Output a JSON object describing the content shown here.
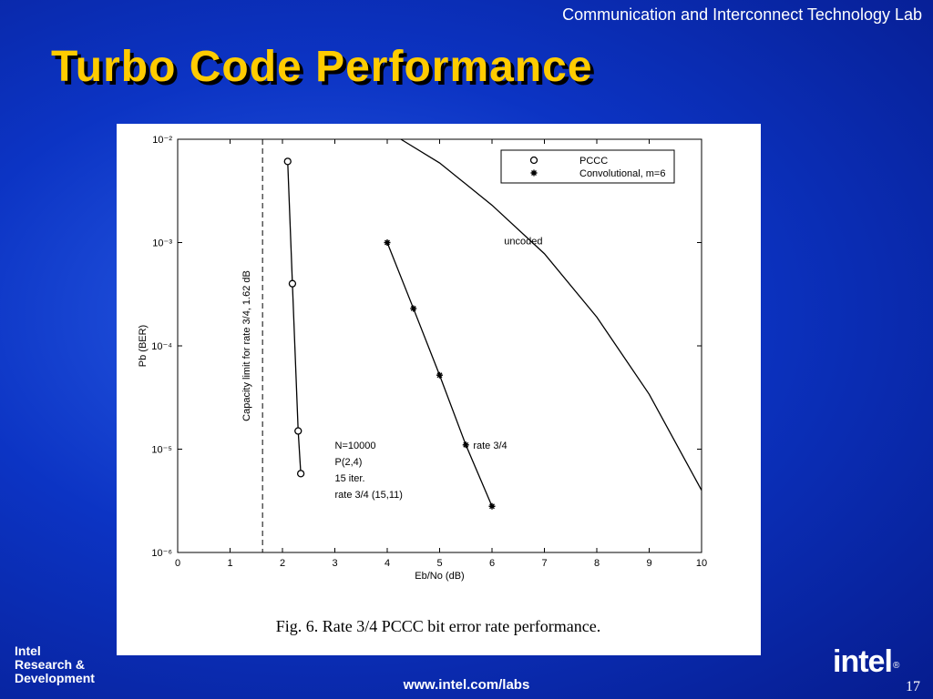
{
  "header": "Communication and Interconnect Technology Lab",
  "title": "Turbo Code Performance",
  "footer": {
    "org": [
      "Intel",
      "Research &",
      "Development"
    ],
    "url": "www.intel.com/labs",
    "page": "17",
    "logo": "intel",
    "registered": "®"
  },
  "chart_data": {
    "type": "line",
    "x_label": "Eb/No (dB)",
    "y_label": "Pb (BER)",
    "caption": "Fig. 6. Rate 3/4 PCCC bit error rate performance.",
    "log_y": true,
    "xlim": [
      0,
      10
    ],
    "ylim": [
      1e-06,
      0.01
    ],
    "xticks": [
      0,
      1,
      2,
      3,
      4,
      5,
      6,
      7,
      8,
      9,
      10
    ],
    "yticks": [
      {
        "value": 0.01,
        "label": "10⁻²"
      },
      {
        "value": 0.001,
        "label": "10⁻³"
      },
      {
        "value": 0.0001,
        "label": "10⁻⁴"
      },
      {
        "value": 1e-05,
        "label": "10⁻⁵"
      },
      {
        "value": 1e-06,
        "label": "10⁻⁶"
      }
    ],
    "legend": "upper right",
    "vline": {
      "x": 1.62,
      "label": "Capacity limit for rate 3/4, 1.62 dB",
      "style": "dashed"
    },
    "series": [
      {
        "name": "PCCC",
        "color": "#000000",
        "marker": "o",
        "x": [
          2.1,
          2.19,
          2.3,
          2.35
        ],
        "values": [
          0.0061,
          0.0004,
          1.5e-05,
          5.8e-06
        ]
      },
      {
        "name": "Convolutional, m=6",
        "color": "#000000",
        "marker": "*",
        "x": [
          4,
          4.5,
          5,
          5.5,
          6
        ],
        "values": [
          0.001,
          0.00023,
          5.2e-05,
          1.1e-05,
          2.8e-06
        ]
      },
      {
        "name": "uncoded",
        "color": "#000000",
        "marker": "none",
        "in_legend": false,
        "x": [
          4.26,
          5,
          6,
          7,
          8,
          9,
          10
        ],
        "values": [
          0.01,
          0.0059,
          0.0023,
          0.00078,
          0.00019,
          3.4e-05,
          4e-06
        ]
      }
    ],
    "annotations": [
      "N=10000",
      "P(2,4)",
      "15 iter.",
      "rate 3/4  (15,11)",
      "rate 3/4"
    ]
  }
}
